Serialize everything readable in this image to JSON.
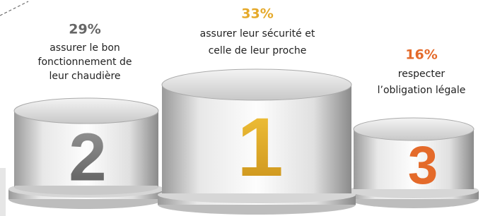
{
  "podium": [
    {
      "rank": "2",
      "percent": "29%",
      "lines": [
        "assurer le bon",
        "fonctionnement de",
        "leur chaudière"
      ]
    },
    {
      "rank": "1",
      "percent": "33%",
      "lines": [
        "assurer leur sécurité et",
        "celle de leur proche"
      ]
    },
    {
      "rank": "3",
      "percent": "16%",
      "lines": [
        "respecter",
        "l’obligation légale"
      ]
    }
  ]
}
